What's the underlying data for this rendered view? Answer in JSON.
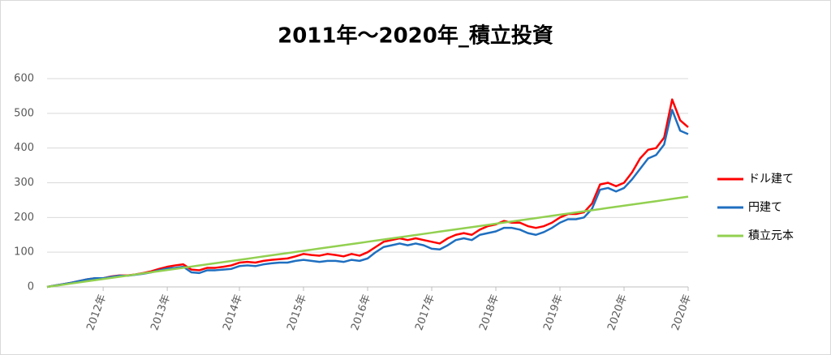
{
  "chart_data": {
    "type": "line",
    "title": "2011年～2020年_積立投資",
    "categories": [
      null,
      null,
      null,
      null,
      null,
      null,
      null,
      "2012年",
      null,
      null,
      null,
      null,
      null,
      null,
      null,
      "2013年",
      null,
      null,
      null,
      null,
      null,
      null,
      null,
      null,
      "2014年",
      null,
      null,
      null,
      null,
      null,
      null,
      null,
      "2015年",
      null,
      null,
      null,
      null,
      null,
      null,
      null,
      "2016年",
      null,
      null,
      null,
      null,
      null,
      null,
      null,
      "2017年",
      null,
      null,
      null,
      null,
      null,
      null,
      null,
      "2018年",
      null,
      null,
      null,
      null,
      null,
      null,
      null,
      "2019年",
      null,
      null,
      null,
      null,
      null,
      null,
      null,
      "2020年",
      null,
      null,
      null,
      null,
      null,
      null,
      null,
      "2020年"
    ],
    "series": [
      {
        "name": "ドル建て",
        "color": "#ff0000",
        "values": [
          0,
          4,
          8,
          12,
          17,
          22,
          25,
          25,
          30,
          33,
          33,
          36,
          40,
          45,
          52,
          58,
          62,
          65,
          50,
          48,
          55,
          55,
          58,
          62,
          70,
          72,
          70,
          75,
          78,
          80,
          82,
          88,
          95,
          92,
          90,
          95,
          92,
          88,
          95,
          90,
          100,
          115,
          130,
          135,
          140,
          135,
          140,
          135,
          130,
          125,
          140,
          150,
          155,
          150,
          165,
          175,
          180,
          190,
          185,
          185,
          175,
          170,
          175,
          185,
          200,
          210,
          210,
          215,
          240,
          295,
          300,
          290,
          300,
          330,
          370,
          395,
          400,
          430,
          540,
          480,
          460
        ]
      },
      {
        "name": "円建て",
        "color": "#1f6fc0",
        "values": [
          0,
          4,
          8,
          12,
          17,
          22,
          25,
          25,
          29,
          32,
          32,
          35,
          38,
          42,
          48,
          53,
          55,
          58,
          42,
          40,
          48,
          48,
          50,
          52,
          60,
          62,
          60,
          65,
          68,
          70,
          70,
          75,
          78,
          75,
          72,
          75,
          75,
          72,
          78,
          75,
          82,
          100,
          115,
          120,
          125,
          120,
          125,
          120,
          110,
          108,
          120,
          135,
          140,
          135,
          150,
          155,
          160,
          170,
          170,
          165,
          155,
          150,
          158,
          170,
          185,
          195,
          195,
          200,
          225,
          280,
          285,
          275,
          285,
          310,
          340,
          370,
          380,
          410,
          510,
          450,
          440
        ]
      },
      {
        "name": "積立元本",
        "color": "#92d050",
        "values": [
          0,
          3.25,
          6.5,
          9.75,
          13,
          16.25,
          19.5,
          22.75,
          26,
          29.25,
          32.5,
          35.75,
          39,
          42.25,
          45.5,
          48.75,
          52,
          55.25,
          58.5,
          61.75,
          65,
          68.25,
          71.5,
          74.75,
          78,
          81.25,
          84.5,
          87.75,
          91,
          94.25,
          97.5,
          100.75,
          104,
          107.25,
          110.5,
          113.75,
          117,
          120.25,
          123.5,
          126.75,
          130,
          133.25,
          136.5,
          139.75,
          143,
          146.25,
          149.5,
          152.75,
          156,
          159.25,
          162.5,
          165.75,
          169,
          172.25,
          175.5,
          178.75,
          182,
          185.25,
          188.5,
          191.75,
          195,
          198.25,
          201.5,
          204.75,
          208,
          211.25,
          214.5,
          217.75,
          221,
          224.25,
          227.5,
          230.75,
          234,
          237.25,
          240.5,
          243.75,
          247,
          250.25,
          253.5,
          256.75,
          260
        ]
      }
    ],
    "ylim": [
      0,
      600
    ],
    "yticks": [
      0,
      100,
      200,
      300,
      400,
      500,
      600
    ],
    "grid": true
  }
}
